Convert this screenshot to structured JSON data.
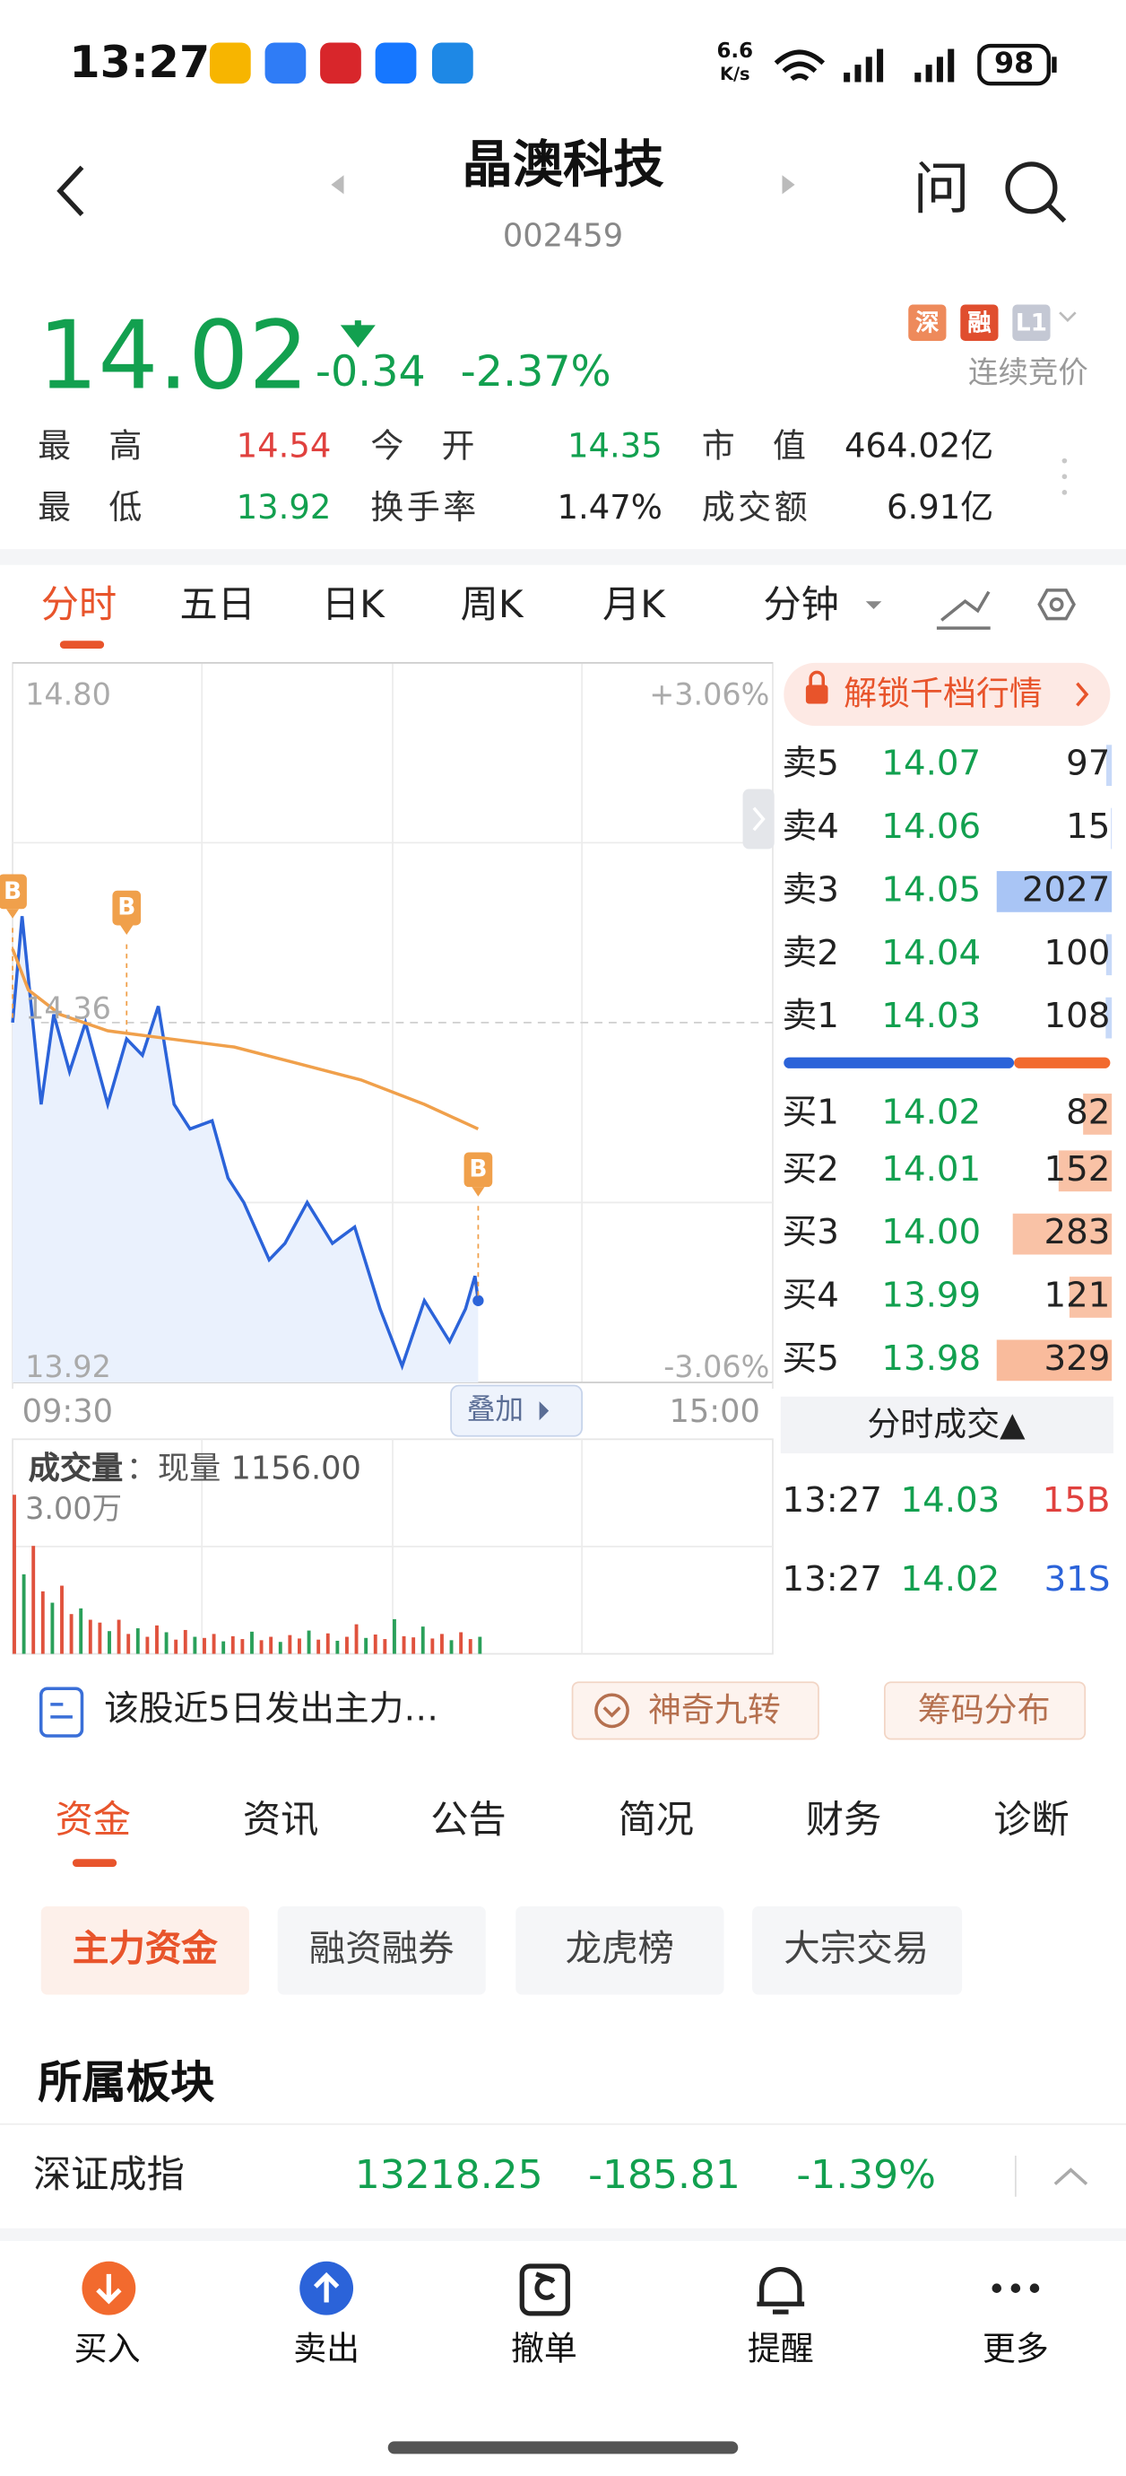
{
  "status": {
    "time": "13:27",
    "speed": "6.6",
    "speed_unit": "K/s",
    "battery": "98"
  },
  "header": {
    "title": "晶澳科技",
    "code": "002459",
    "ask": "问"
  },
  "quote": {
    "price": "14.02",
    "change": "-0.34",
    "pct": "-2.37%",
    "badges": [
      "深",
      "融",
      "L1"
    ],
    "state": "连续竞价"
  },
  "stats": [
    [
      {
        "label": "最高",
        "value": "14.54"
      },
      {
        "label": "今开",
        "value": "14.35"
      },
      {
        "label": "市值",
        "value": "464.02亿"
      }
    ],
    [
      {
        "label": "最低",
        "value": "13.92"
      },
      {
        "label": "换手率",
        "value": "1.47%"
      },
      {
        "label": "成交额",
        "value": "6.91亿"
      }
    ]
  ],
  "tabs": [
    "分时",
    "五日",
    "日K",
    "周K",
    "月K",
    "分钟"
  ],
  "chart_data": {
    "type": "line",
    "xlim": [
      0,
      240
    ],
    "xticks": [
      {
        "value": 0,
        "label": "09:30"
      },
      {
        "value": 240,
        "label": "15:00"
      }
    ],
    "ylim": [
      13.92,
      14.8
    ],
    "yticks": [
      13.92,
      14.36,
      {
        "value": 14.8,
        "label": "14.80"
      }
    ],
    "pct_ticks": [
      "+3.06%",
      "-3.06%"
    ],
    "series": [
      {
        "color": "#2b63d9",
        "x": [
          0,
          3,
          9,
          13,
          18,
          23,
          30,
          36,
          41,
          46,
          51,
          56,
          63,
          68,
          73,
          81,
          86,
          93,
          101,
          108,
          116,
          123,
          130,
          138,
          143,
          146,
          147
        ],
        "values": [
          14.36,
          14.49,
          14.26,
          14.37,
          14.3,
          14.36,
          14.26,
          14.34,
          14.32,
          14.38,
          14.26,
          14.23,
          14.24,
          14.17,
          14.14,
          14.07,
          14.09,
          14.14,
          14.09,
          14.11,
          14.01,
          13.94,
          14.02,
          13.97,
          14.01,
          14.05,
          14.02
        ]
      },
      {
        "color": "#f0a04b",
        "x": [
          0,
          5,
          15,
          30,
          50,
          70,
          90,
          110,
          130,
          147
        ],
        "values": [
          14.45,
          14.4,
          14.37,
          14.35,
          14.34,
          14.33,
          14.31,
          14.29,
          14.26,
          14.23
        ]
      }
    ],
    "annotations": [
      {
        "x": 0,
        "label": "B"
      },
      {
        "x": 36,
        "label": "B"
      },
      {
        "x": 147,
        "label": "B"
      }
    ],
    "overlay": "叠加"
  },
  "volume": {
    "title": "成交量",
    "current": "：现量 1156.00",
    "max_label": "3.00万",
    "ylim": [
      0,
      30000
    ],
    "color": "#e0523d",
    "color2": "#2aa05a",
    "x": [
      0,
      3,
      6,
      9,
      12,
      15,
      18,
      21,
      24,
      27,
      30,
      33,
      36,
      39,
      42,
      45,
      48,
      51,
      54,
      57,
      60,
      63,
      66,
      69,
      72,
      75,
      78,
      81,
      84,
      87,
      90,
      93,
      96,
      99,
      102,
      105,
      108,
      111,
      114,
      117,
      120,
      123,
      126,
      129,
      132,
      135,
      138,
      141,
      144,
      147
    ],
    "values": [
      28000,
      14000,
      19000,
      11000,
      9000,
      12000,
      7000,
      8000,
      6000,
      5500,
      4000,
      6000,
      3500,
      4500,
      3000,
      5000,
      3800,
      2500,
      4200,
      3000,
      2800,
      3500,
      2200,
      3100,
      2600,
      3900,
      2400,
      3000,
      2100,
      3300,
      2700,
      4100,
      2500,
      3600,
      2300,
      3000,
      5200,
      2800,
      3400,
      2600,
      6100,
      3100,
      2900,
      4800,
      2700,
      3500,
      2400,
      3800,
      2600,
      3000
    ]
  },
  "orderbook": {
    "unlock": "解锁千档行情",
    "asks": [
      {
        "label": "卖5",
        "price": "14.07",
        "vol": 97
      },
      {
        "label": "卖4",
        "price": "14.06",
        "vol": 15
      },
      {
        "label": "卖3",
        "price": "14.05",
        "vol": 2027
      },
      {
        "label": "卖2",
        "price": "14.04",
        "vol": 100
      },
      {
        "label": "卖1",
        "price": "14.03",
        "vol": 108
      }
    ],
    "bids": [
      {
        "label": "买1",
        "price": "14.02",
        "vol": 82
      },
      {
        "label": "买2",
        "price": "14.01",
        "vol": 152
      },
      {
        "label": "买3",
        "price": "14.00",
        "vol": 283
      },
      {
        "label": "买4",
        "price": "13.99",
        "vol": 121
      },
      {
        "label": "买5",
        "price": "13.98",
        "vol": 329
      }
    ],
    "trades_title": "分时成交▲",
    "trades": [
      {
        "time": "13:27",
        "price": "14.03",
        "vol": "15B"
      },
      {
        "time": "13:27",
        "price": "14.02",
        "vol": "31S"
      }
    ]
  },
  "notice": {
    "text": "该股近5日发出主力…",
    "buttons": [
      "神奇九转",
      "筹码分布"
    ]
  },
  "tabs2": [
    "资金",
    "资讯",
    "公告",
    "简况",
    "财务",
    "诊断"
  ],
  "subtabs": [
    "主力资金",
    "融资融券",
    "龙虎榜",
    "大宗交易"
  ],
  "sector": {
    "title": "所属板块",
    "name": "深证成指",
    "value": "13218.25",
    "change": "-185.81",
    "pct": "-1.39%"
  },
  "nav": [
    "买入",
    "卖出",
    "撤单",
    "提醒",
    "更多"
  ]
}
